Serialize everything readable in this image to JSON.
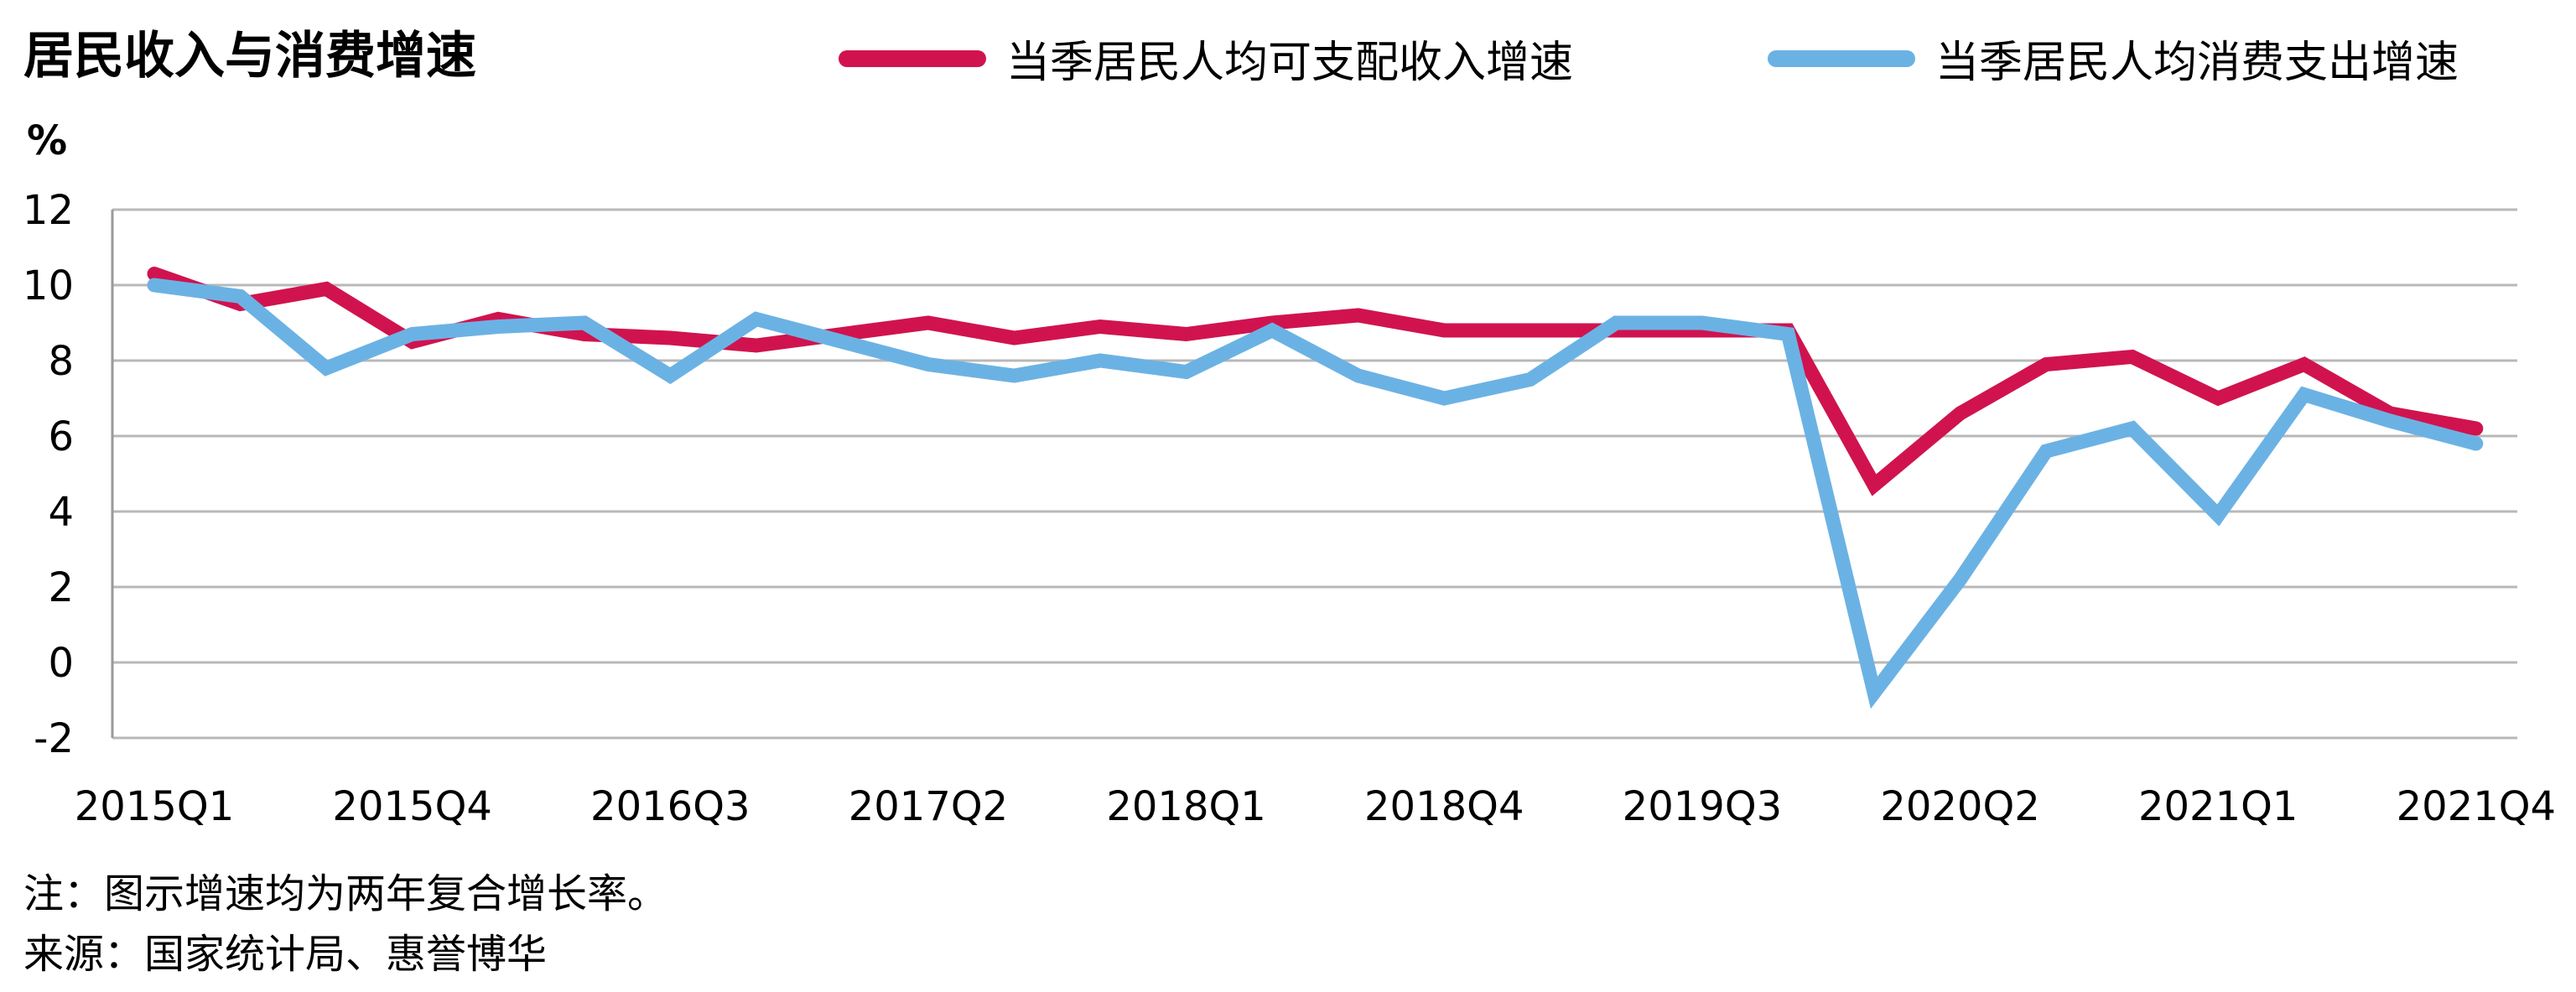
{
  "title": "居民收入与消费增速",
  "unit": "%",
  "notes": {
    "note": "注：图示增速均为两年复合增长率。",
    "source": "来源：国家统计局、惠誉博华"
  },
  "colors": {
    "income": "#d0134f",
    "consumption": "#6bb2e4",
    "grid": "#b8b8b8",
    "axis": "#9a9a9a"
  },
  "chart_data": {
    "type": "line",
    "ylim": [
      -2,
      12
    ],
    "yticks": [
      -2,
      0,
      2,
      4,
      6,
      8,
      10,
      12
    ],
    "grid": true,
    "legend_position": "top-right",
    "x": [
      "2015Q1",
      "2015Q2",
      "2015Q3",
      "2015Q4",
      "2016Q1",
      "2016Q2",
      "2016Q3",
      "2016Q4",
      "2017Q1",
      "2017Q2",
      "2017Q3",
      "2017Q4",
      "2018Q1",
      "2018Q2",
      "2018Q3",
      "2018Q4",
      "2019Q1",
      "2019Q2",
      "2019Q3",
      "2019Q4",
      "2020Q1",
      "2020Q2",
      "2020Q3",
      "2020Q4",
      "2021Q1",
      "2021Q2",
      "2021Q3",
      "2021Q4"
    ],
    "xtick_labels": [
      "2015Q1",
      "2015Q4",
      "2016Q3",
      "2017Q2",
      "2018Q1",
      "2018Q4",
      "2019Q3",
      "2020Q2",
      "2021Q1",
      "2021Q4"
    ],
    "series": [
      {
        "name": "当季居民人均可支配收入增速",
        "values": [
          10.3,
          9.5,
          9.9,
          8.5,
          9.1,
          8.7,
          8.6,
          8.4,
          8.7,
          9.0,
          8.6,
          8.9,
          8.7,
          9.0,
          9.2,
          8.8,
          8.8,
          8.8,
          8.8,
          8.8,
          4.7,
          6.6,
          7.9,
          8.1,
          7.0,
          7.9,
          6.6,
          6.2
        ]
      },
      {
        "name": "当季居民人均消费支出增速",
        "values": [
          10.0,
          9.7,
          7.8,
          8.7,
          8.9,
          9.0,
          7.6,
          9.1,
          8.5,
          7.9,
          7.6,
          8.0,
          7.7,
          8.8,
          7.6,
          7.0,
          7.5,
          9.0,
          9.0,
          8.7,
          -0.8,
          2.2,
          5.6,
          6.2,
          3.9,
          7.1,
          6.4,
          5.8
        ]
      }
    ]
  }
}
